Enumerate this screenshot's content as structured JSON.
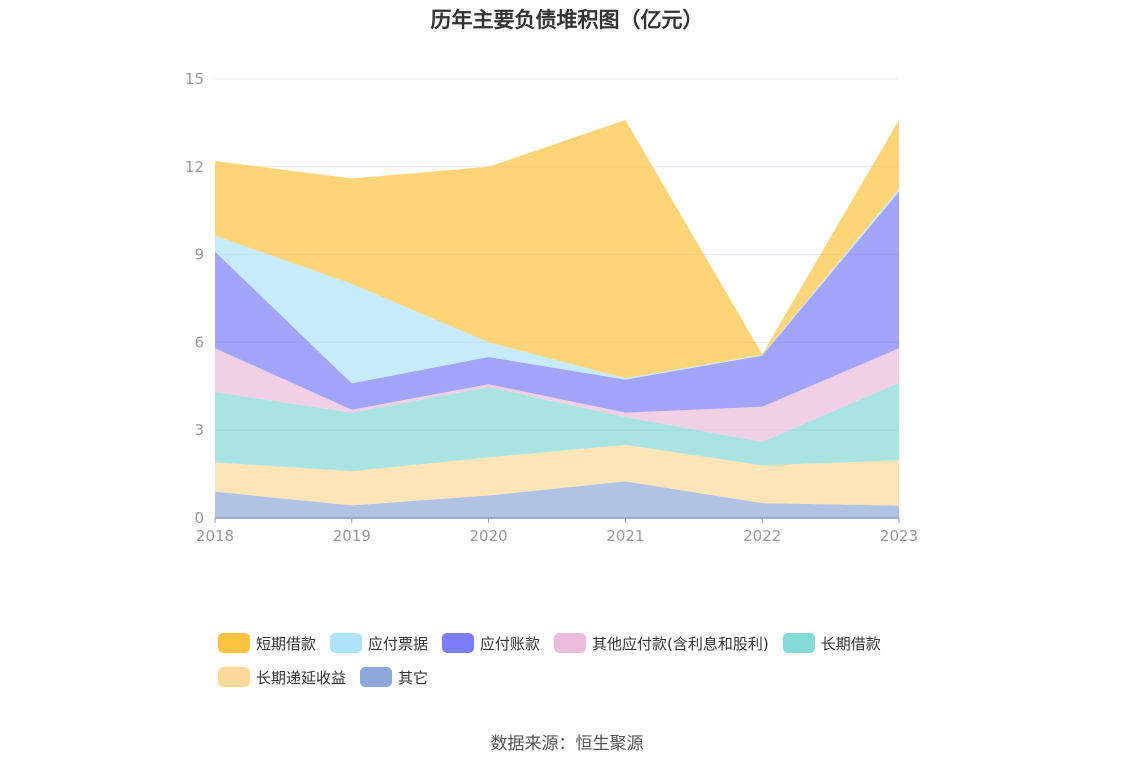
{
  "chart_data": {
    "type": "area",
    "stacked": true,
    "title": "历年主要负债堆积图（亿元）",
    "source": "数据来源：恒生聚源",
    "x": [
      "2018",
      "2019",
      "2020",
      "2021",
      "2022",
      "2023"
    ],
    "ylim": [
      0,
      15
    ],
    "yticks": [
      0,
      3,
      6,
      9,
      12,
      15
    ],
    "grid": true,
    "legend_position": "bottom",
    "series": [
      {
        "name": "其它",
        "color": "#8ea9d9",
        "values": [
          0.9,
          0.43,
          0.77,
          1.25,
          0.51,
          0.42
        ]
      },
      {
        "name": "长期递延收益",
        "color": "#ffd99a",
        "values": [
          1.0,
          1.17,
          1.3,
          1.25,
          1.29,
          1.55
        ]
      },
      {
        "name": "长期借款",
        "color": "#85d9d6",
        "values": [
          2.4,
          2.0,
          2.4,
          0.95,
          0.8,
          2.65
        ]
      },
      {
        "name": "其他应付款(含利息和股利)",
        "color": "#ebbcdc",
        "values": [
          1.5,
          0.1,
          0.1,
          0.15,
          1.2,
          1.18
        ]
      },
      {
        "name": "应付账款",
        "color": "#7b7ef7",
        "values": [
          3.3,
          0.9,
          0.93,
          1.13,
          1.75,
          5.35
        ]
      },
      {
        "name": "应付票据",
        "color": "#aee3fb",
        "values": [
          0.55,
          3.4,
          0.5,
          0.05,
          0.03,
          0.1
        ]
      },
      {
        "name": "短期借款",
        "color": "#fdc240",
        "values": [
          2.55,
          3.6,
          6.0,
          8.82,
          0.02,
          2.35
        ]
      }
    ]
  },
  "legend_order": [
    6,
    5,
    4,
    3,
    2,
    1,
    0
  ]
}
